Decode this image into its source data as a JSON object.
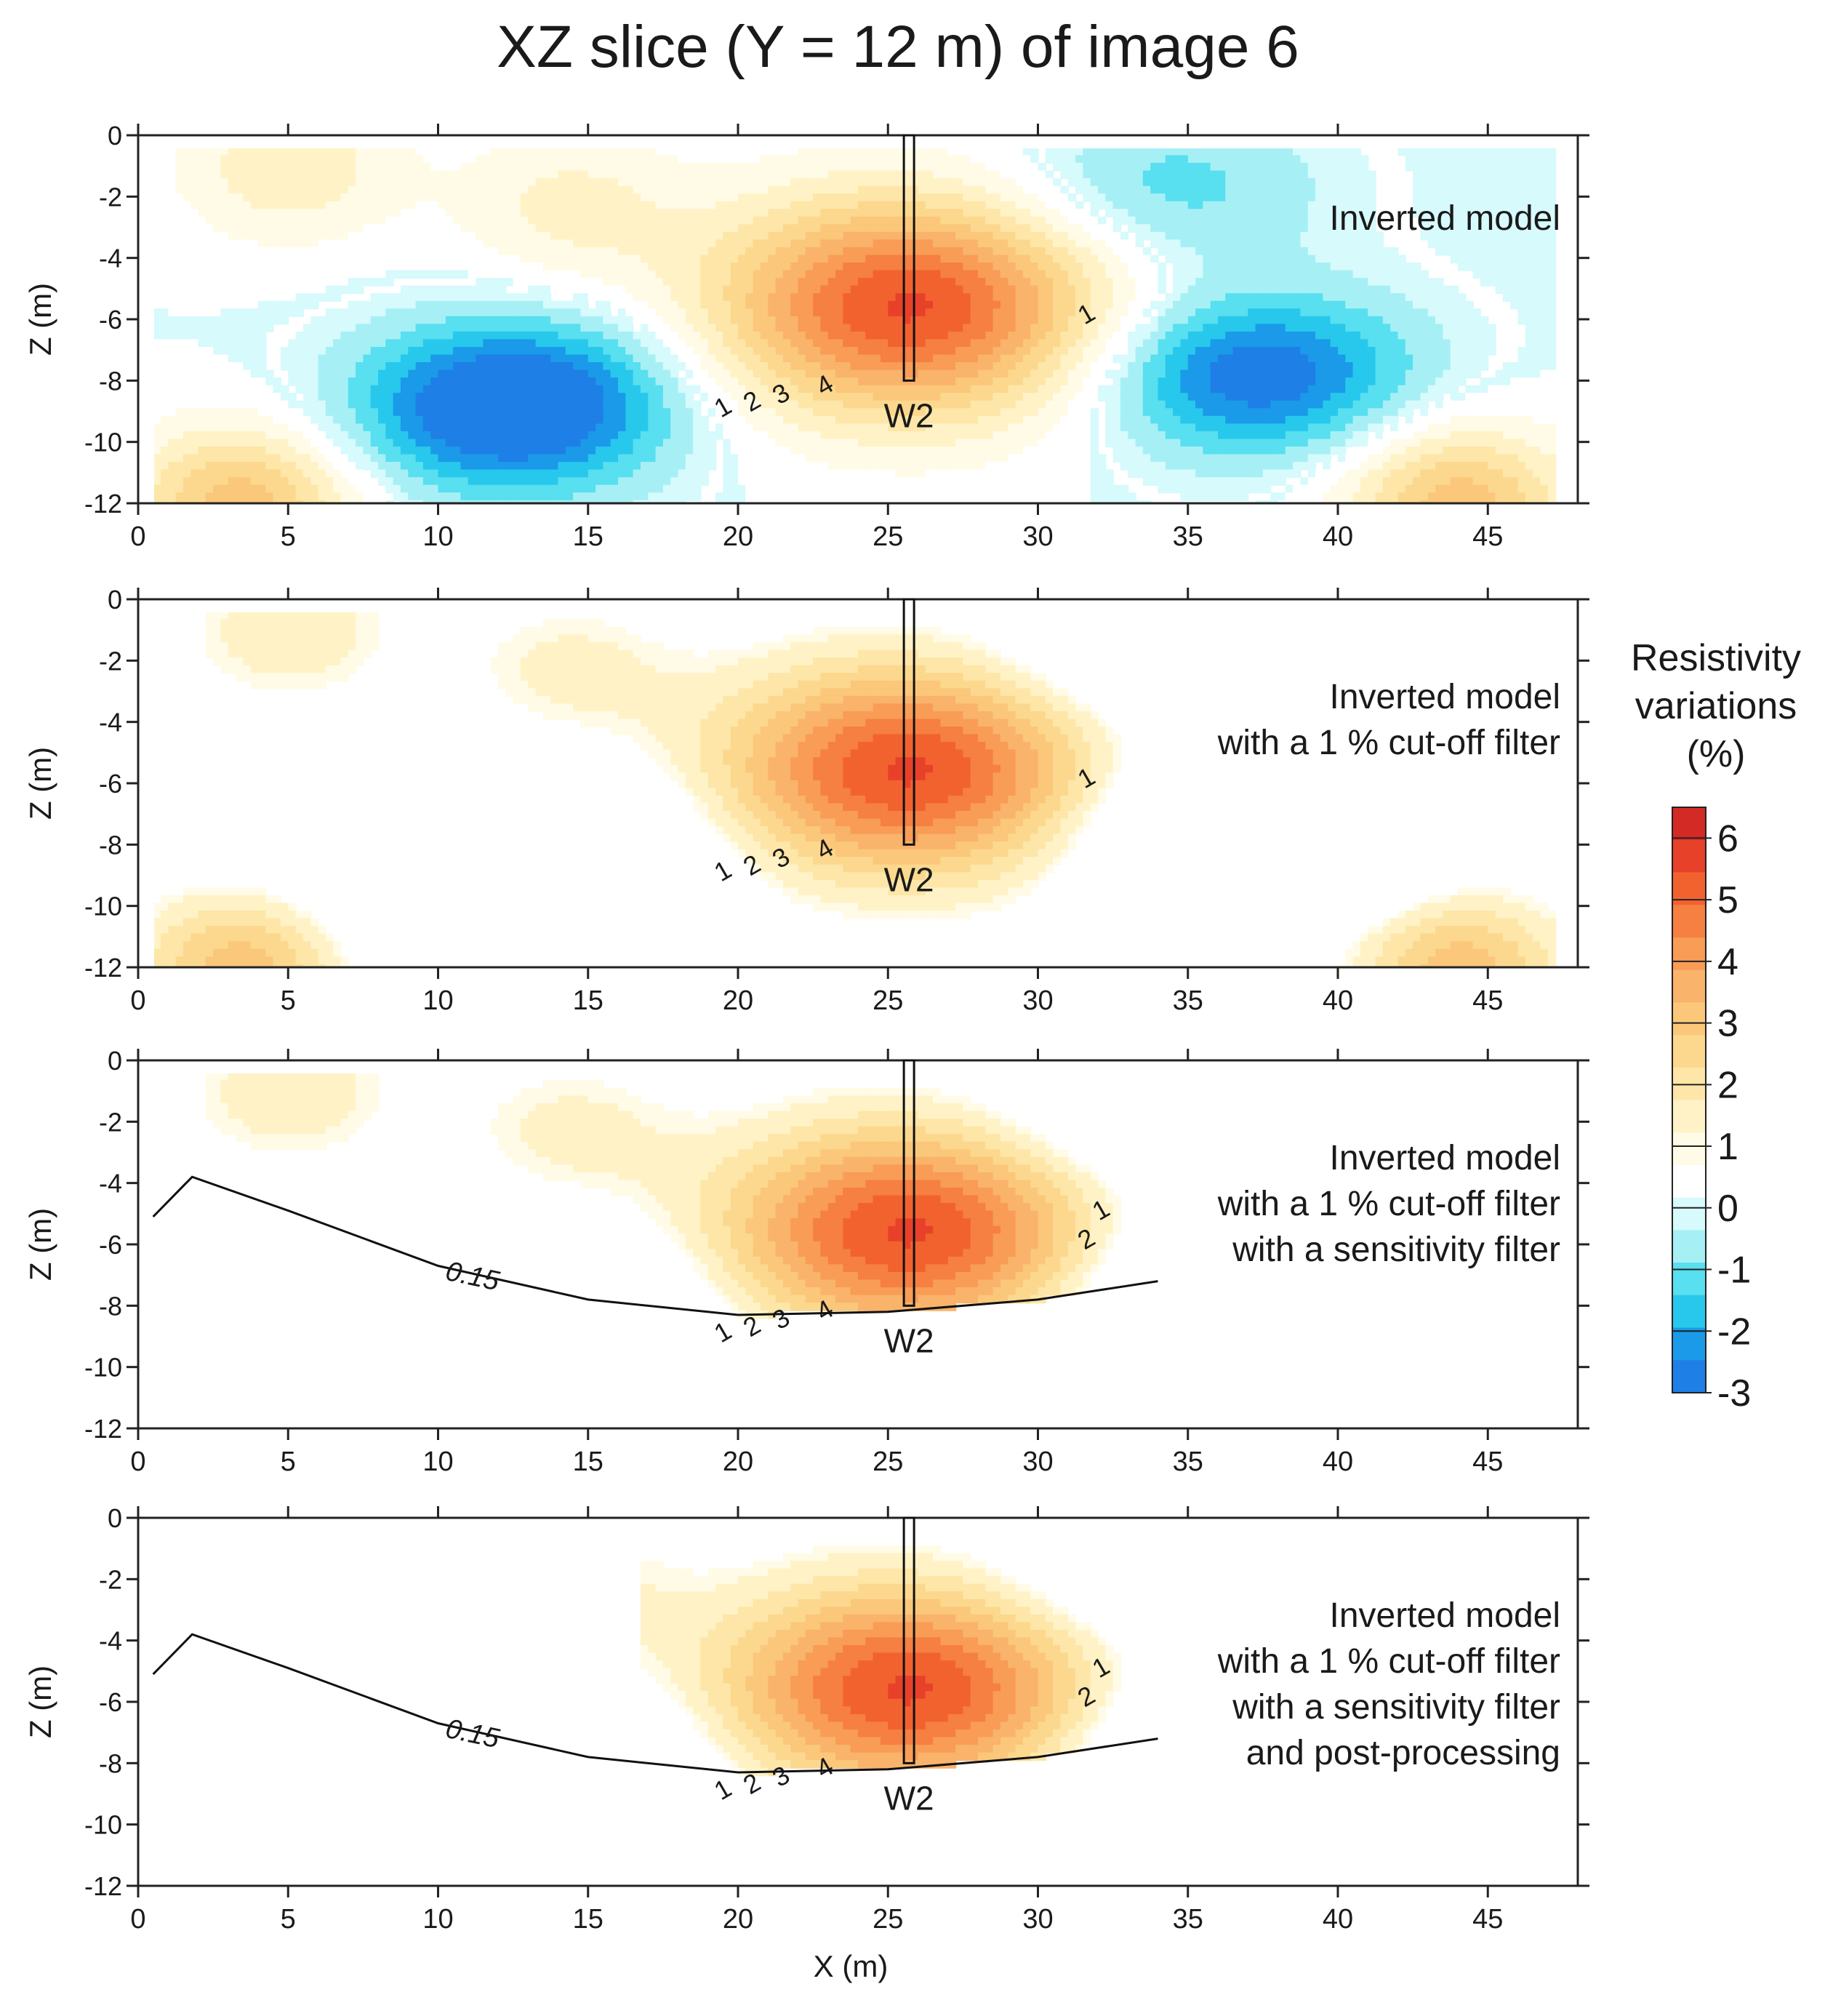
{
  "chart_data": {
    "type": "heatmap",
    "title": "XZ slice (Y = 12 m) of image 6",
    "xlabel": "X (m)",
    "ylabel": "Z (m)",
    "xlim": [
      0,
      48
    ],
    "ylim": [
      -12,
      0
    ],
    "x_ticks": [
      0,
      5,
      10,
      15,
      20,
      25,
      30,
      35,
      40,
      45
    ],
    "y_ticks": [
      0,
      -2,
      -4,
      -6,
      -8,
      -10,
      -12
    ],
    "well": {
      "label": "W2",
      "x": 25.7,
      "z_top": 0,
      "z_bottom": -8
    },
    "colorbar": {
      "title": [
        "Resistivity",
        "variations",
        "(%)"
      ],
      "ticks": [
        6,
        5,
        4,
        3,
        2,
        1,
        0,
        -1,
        -2,
        -3
      ],
      "range": [
        -3,
        6.5
      ],
      "colors": [
        "#1e7fe6",
        "#1a9ae8",
        "#27c8ec",
        "#58dff0",
        "#a6f0f5",
        "#d7fafc",
        "#ffffff",
        "#fffbe6",
        "#fff2c6",
        "#fde6a8",
        "#fcd88e",
        "#fbc77a",
        "#f9b36a",
        "#f89c56",
        "#f67f42",
        "#f2622f",
        "#e8412a",
        "#d42a26"
      ]
    },
    "sensitivity_contour": {
      "label": "0.15",
      "x": [
        0.5,
        1.8,
        5,
        10,
        15,
        20,
        25,
        30,
        34
      ],
      "z": [
        -5.1,
        -3.8,
        -4.9,
        -6.7,
        -7.8,
        -8.3,
        -8.2,
        -7.8,
        -7.2
      ]
    },
    "panels": [
      {
        "lines": [
          "Inverted model"
        ],
        "contour_labels": [
          "1",
          "2",
          "3",
          "4",
          "1"
        ],
        "anomalies": [
          {
            "x": 25.7,
            "z": -5.6,
            "peak": 5.4
          },
          {
            "x": 3.5,
            "z": -12.0,
            "peak": 3.0
          },
          {
            "x": 44.0,
            "z": -12.0,
            "peak": 3.0
          },
          {
            "x": 5.0,
            "z": -1.0,
            "peak": 1.5
          },
          {
            "x": 14.3,
            "z": -2.3,
            "peak": 1.2
          },
          {
            "x": 37.2,
            "z": -7.8,
            "peak": -3.2
          },
          {
            "x": 13.0,
            "z": -8.3,
            "peak": -2.4
          },
          {
            "x": 12.0,
            "z": -9.5,
            "peak": -1.8
          },
          {
            "x": 34.0,
            "z": -1.8,
            "peak": -1.4
          }
        ]
      },
      {
        "lines": [
          "Inverted model",
          "with a 1 % cut-off filter"
        ],
        "contour_labels": [
          "1",
          "2",
          "3",
          "4",
          "1"
        ]
      },
      {
        "lines": [
          "Inverted model",
          "with a 1 % cut-off filter",
          "with a sensitivity filter"
        ],
        "contour_labels": [
          "1",
          "2",
          "3",
          "4",
          "2",
          "1"
        ]
      },
      {
        "lines": [
          "Inverted model",
          "with a 1 % cut-off filter",
          "with a sensitivity filter",
          "and post-processing"
        ],
        "contour_labels": [
          "1",
          "2",
          "3",
          "4",
          "2",
          "1"
        ]
      }
    ]
  }
}
